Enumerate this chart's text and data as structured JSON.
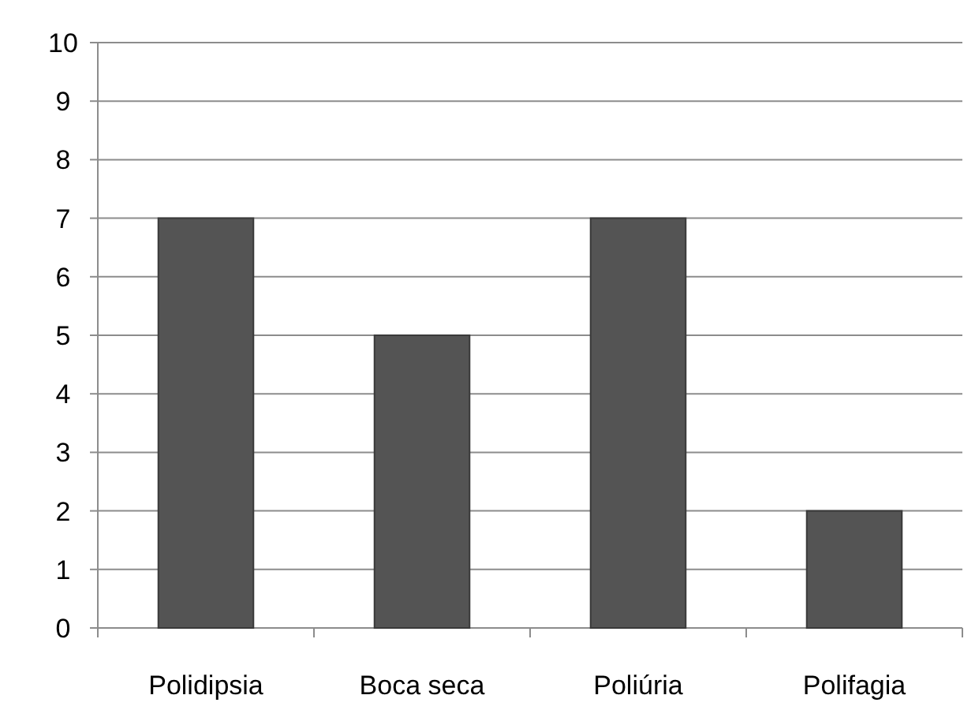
{
  "chart_data": {
    "type": "bar",
    "categories": [
      "Polidipsia",
      "Boca seca",
      "Poliúria",
      "Polifagia"
    ],
    "values": [
      7,
      5,
      7,
      2
    ],
    "color": "#545454",
    "ylim": [
      0,
      10
    ],
    "yticks": [
      0,
      1,
      2,
      3,
      4,
      5,
      6,
      7,
      8,
      9,
      10
    ],
    "grid": "y"
  }
}
